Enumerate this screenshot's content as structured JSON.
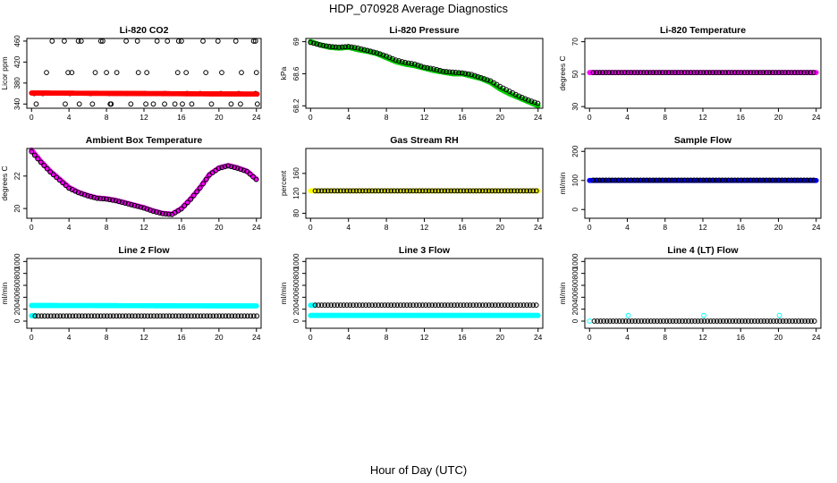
{
  "figure": {
    "title": "HDP_070928  Average Diagnostics",
    "xlabel": "Hour of Day (UTC)"
  },
  "chart_data": [
    {
      "type": "scatter",
      "title": "Li-820 CO2",
      "ylabel": "Licor ppm",
      "xlim": [
        -0.5,
        24.5
      ],
      "ylim": [
        332,
        465
      ],
      "xticks": [
        0,
        4,
        8,
        12,
        16,
        20,
        24
      ],
      "yticks": [
        340,
        380,
        420,
        460
      ],
      "series": [
        {
          "style": "open",
          "color": "#000000",
          "points": [
            [
              0.5,
              340
            ],
            [
              1.6,
              400
            ],
            [
              2.2,
              460
            ],
            [
              3.5,
              460
            ],
            [
              3.6,
              340
            ],
            [
              3.9,
              400
            ],
            [
              4.3,
              400
            ],
            [
              5.0,
              460
            ],
            [
              5.1,
              340
            ],
            [
              5.3,
              460
            ],
            [
              6.5,
              340
            ],
            [
              6.8,
              400
            ],
            [
              7.4,
              460
            ],
            [
              7.6,
              460
            ],
            [
              8.0,
              400
            ],
            [
              8.4,
              340
            ],
            [
              8.5,
              340
            ],
            [
              9.1,
              400
            ],
            [
              10.1,
              460
            ],
            [
              10.6,
              340
            ],
            [
              11.3,
              460
            ],
            [
              11.4,
              400
            ],
            [
              12.2,
              340
            ],
            [
              12.3,
              400
            ],
            [
              13.0,
              340
            ],
            [
              13.4,
              460
            ],
            [
              14.2,
              340
            ],
            [
              14.5,
              460
            ],
            [
              15.3,
              340
            ],
            [
              15.6,
              400
            ],
            [
              15.7,
              460
            ],
            [
              16.0,
              460
            ],
            [
              16.1,
              340
            ],
            [
              16.5,
              400
            ],
            [
              17.1,
              340
            ],
            [
              18.3,
              460
            ],
            [
              18.6,
              400
            ],
            [
              19.2,
              340
            ],
            [
              19.9,
              460
            ],
            [
              20.3,
              400
            ],
            [
              21.3,
              340
            ],
            [
              21.8,
              460
            ],
            [
              22.3,
              340
            ],
            [
              22.4,
              400
            ],
            [
              23.7,
              460
            ],
            [
              23.9,
              460
            ],
            [
              24.0,
              400
            ],
            [
              24.1,
              340
            ],
            [
              0.3,
              360
            ],
            [
              1.2,
              360
            ],
            [
              4.1,
              360
            ],
            [
              6.3,
              360
            ],
            [
              8.3,
              360
            ],
            [
              10.2,
              360
            ],
            [
              12.1,
              360
            ],
            [
              14.2,
              360
            ],
            [
              16.6,
              360
            ],
            [
              18.0,
              360
            ],
            [
              20.2,
              360
            ],
            [
              22.1,
              360
            ],
            [
              23.9,
              360
            ]
          ]
        },
        {
          "style": "dense",
          "color": "#ff0000",
          "from": 0,
          "to": 24.1,
          "y_start": 361,
          "y_end": 359
        }
      ]
    },
    {
      "type": "scatter",
      "title": "Li-820 Pressure",
      "ylabel": "kPa",
      "xlim": [
        -0.5,
        24.5
      ],
      "ylim": [
        68.17,
        69.04
      ],
      "xticks": [
        0,
        4,
        8,
        12,
        16,
        20,
        24
      ],
      "yticks": [
        68.2,
        68.6,
        69.0
      ],
      "series": [
        {
          "style": "dense",
          "color": "#00cc00",
          "curve": [
            [
              0,
              69.0
            ],
            [
              1,
              68.96
            ],
            [
              2,
              68.93
            ],
            [
              3,
              68.92
            ],
            [
              4,
              68.93
            ],
            [
              5,
              68.9
            ],
            [
              6,
              68.88
            ],
            [
              7,
              68.85
            ],
            [
              8,
              68.8
            ],
            [
              9,
              68.75
            ],
            [
              10,
              68.72
            ],
            [
              11,
              68.7
            ],
            [
              12,
              68.67
            ],
            [
              13,
              68.64
            ],
            [
              14,
              68.62
            ],
            [
              15,
              68.6
            ],
            [
              16,
              68.6
            ],
            [
              17,
              68.57
            ],
            [
              18,
              68.54
            ],
            [
              19,
              68.49
            ],
            [
              20,
              68.41
            ],
            [
              21,
              68.35
            ],
            [
              22,
              68.3
            ],
            [
              23,
              68.25
            ],
            [
              24,
              68.2
            ]
          ]
        },
        {
          "style": "open",
          "color": "#000000",
          "curve": [
            [
              0,
              68.99
            ],
            [
              1,
              68.96
            ],
            [
              2,
              68.94
            ],
            [
              3,
              68.93
            ],
            [
              4,
              68.94
            ],
            [
              5,
              68.92
            ],
            [
              6,
              68.89
            ],
            [
              7,
              68.86
            ],
            [
              8,
              68.82
            ],
            [
              9,
              68.77
            ],
            [
              10,
              68.74
            ],
            [
              11,
              68.72
            ],
            [
              12,
              68.68
            ],
            [
              13,
              68.66
            ],
            [
              14,
              68.63
            ],
            [
              15,
              68.62
            ],
            [
              16,
              68.61
            ],
            [
              17,
              68.59
            ],
            [
              18,
              68.55
            ],
            [
              19,
              68.51
            ],
            [
              20,
              68.44
            ],
            [
              21,
              68.38
            ],
            [
              22,
              68.32
            ],
            [
              23,
              68.27
            ],
            [
              24,
              68.23
            ]
          ]
        }
      ]
    },
    {
      "type": "scatter",
      "title": "Li-820 Temperature",
      "ylabel": "degrees C",
      "xlim": [
        -0.5,
        24.5
      ],
      "ylim": [
        29,
        72
      ],
      "xticks": [
        0,
        4,
        8,
        12,
        16,
        20,
        24
      ],
      "yticks": [
        30,
        50,
        70
      ],
      "series": [
        {
          "style": "dense",
          "color": "#ff00ff",
          "from": 0,
          "to": 24,
          "y_start": 51,
          "y_end": 51
        },
        {
          "style": "open",
          "color": "#000000",
          "from": 0.4,
          "to": 24,
          "y_start": 51,
          "y_end": 51
        }
      ]
    },
    {
      "type": "scatter",
      "title": "Ambient Box Temperature",
      "ylabel": "degrees C",
      "xlim": [
        -0.5,
        24.5
      ],
      "ylim": [
        19.4,
        23.7
      ],
      "xticks": [
        0,
        4,
        8,
        12,
        16,
        20,
        24
      ],
      "yticks": [
        20,
        22
      ],
      "series": [
        {
          "style": "dense",
          "color": "#ff00ff",
          "curve": [
            [
              0,
              23.6
            ],
            [
              1,
              22.9
            ],
            [
              2,
              22.3
            ],
            [
              3,
              21.8
            ],
            [
              4,
              21.3
            ],
            [
              5,
              21.0
            ],
            [
              6,
              20.8
            ],
            [
              7,
              20.65
            ],
            [
              8,
              20.6
            ],
            [
              9,
              20.5
            ],
            [
              10,
              20.35
            ],
            [
              11,
              20.2
            ],
            [
              12,
              20.05
            ],
            [
              13,
              19.85
            ],
            [
              14,
              19.7
            ],
            [
              15,
              19.65
            ],
            [
              16,
              20.0
            ],
            [
              17,
              20.6
            ],
            [
              18,
              21.3
            ],
            [
              19,
              22.1
            ],
            [
              20,
              22.5
            ],
            [
              21,
              22.65
            ],
            [
              22,
              22.5
            ],
            [
              23,
              22.3
            ],
            [
              24,
              21.8
            ]
          ]
        },
        {
          "style": "open",
          "color": "#000000",
          "curve": [
            [
              0,
              23.5
            ],
            [
              1,
              22.85
            ],
            [
              2,
              22.25
            ],
            [
              3,
              21.75
            ],
            [
              4,
              21.25
            ],
            [
              5,
              20.98
            ],
            [
              6,
              20.78
            ],
            [
              7,
              20.63
            ],
            [
              8,
              20.58
            ],
            [
              9,
              20.48
            ],
            [
              10,
              20.33
            ],
            [
              11,
              20.18
            ],
            [
              12,
              20.03
            ],
            [
              13,
              19.83
            ],
            [
              14,
              19.68
            ],
            [
              15,
              19.63
            ],
            [
              16,
              19.98
            ],
            [
              17,
              20.58
            ],
            [
              18,
              21.28
            ],
            [
              19,
              22.08
            ],
            [
              20,
              22.48
            ],
            [
              21,
              22.63
            ],
            [
              22,
              22.48
            ],
            [
              23,
              22.28
            ],
            [
              24,
              21.78
            ]
          ]
        }
      ]
    },
    {
      "type": "scatter",
      "title": "Gas Stream RH",
      "ylabel": "percent",
      "xlim": [
        -0.5,
        24.5
      ],
      "ylim": [
        70,
        210
      ],
      "xticks": [
        0,
        4,
        8,
        12,
        16,
        20,
        24
      ],
      "yticks": [
        80,
        120,
        160
      ],
      "series": [
        {
          "style": "dense",
          "color": "#ffff00",
          "from": 0,
          "to": 24,
          "y_start": 125,
          "y_end": 125
        },
        {
          "style": "open",
          "color": "#000000",
          "from": 0.5,
          "to": 24,
          "y_start": 125,
          "y_end": 125
        }
      ]
    },
    {
      "type": "scatter",
      "title": "Sample Flow",
      "ylabel": "ml/min",
      "xlim": [
        -0.5,
        24.5
      ],
      "ylim": [
        -30,
        210
      ],
      "xticks": [
        0,
        4,
        8,
        12,
        16,
        20,
        24
      ],
      "yticks": [
        0,
        100,
        200
      ],
      "series": [
        {
          "style": "dense",
          "color": "#0000ff",
          "from": 0,
          "to": 24,
          "y_start": 100,
          "y_end": 100
        },
        {
          "style": "open",
          "color": "#000000",
          "from": 0.4,
          "to": 24,
          "y_start": 101,
          "y_end": 101
        }
      ]
    },
    {
      "type": "scatter",
      "title": "Line 2 Flow",
      "ylabel": "ml/min",
      "xlim": [
        -0.5,
        24.5
      ],
      "ylim": [
        -120,
        1050
      ],
      "xticks": [
        0,
        4,
        8,
        12,
        16,
        20,
        24
      ],
      "yticks": [
        0,
        200,
        400,
        600,
        800,
        1000
      ],
      "series": [
        {
          "style": "dense",
          "color": "#00ffff",
          "from": 0,
          "to": 24,
          "y_start": 262,
          "y_end": 255
        },
        {
          "style": "dense",
          "color": "#00ffff",
          "from": 0,
          "to": 0.4,
          "y_start": 90,
          "y_end": 90
        },
        {
          "style": "open",
          "color": "#000000",
          "from": 0.4,
          "to": 24.1,
          "y_start": 85,
          "y_end": 85
        }
      ]
    },
    {
      "type": "scatter",
      "title": "Line 3 Flow",
      "ylabel": "ml/min",
      "xlim": [
        -0.5,
        24.5
      ],
      "ylim": [
        -120,
        1050
      ],
      "xticks": [
        0,
        4,
        8,
        12,
        16,
        20,
        24
      ],
      "yticks": [
        0,
        200,
        400,
        600,
        800,
        1000
      ],
      "series": [
        {
          "style": "dense",
          "color": "#00ffff",
          "from": 0,
          "to": 24,
          "y_start": 95,
          "y_end": 95
        },
        {
          "style": "dense",
          "color": "#00ffff",
          "from": 0,
          "to": 0.4,
          "y_start": 265,
          "y_end": 265
        },
        {
          "style": "open",
          "color": "#000000",
          "from": 0.5,
          "to": 24.1,
          "y_start": 268,
          "y_end": 268
        }
      ]
    },
    {
      "type": "scatter",
      "title": "Line 4 (LT) Flow",
      "ylabel": "ml/min",
      "xlim": [
        -0.5,
        24.5
      ],
      "ylim": [
        -120,
        1050
      ],
      "xticks": [
        0,
        4,
        8,
        12,
        16,
        20,
        24
      ],
      "yticks": [
        0,
        200,
        400,
        600,
        800,
        1000
      ],
      "series": [
        {
          "style": "open",
          "color": "#000000",
          "from": 0.5,
          "to": 24.1,
          "y_start": 0,
          "y_end": 0
        },
        {
          "style": "open",
          "color": "#00ffff",
          "points": [
            [
              0,
              0
            ],
            [
              4.1,
              95
            ],
            [
              12.1,
              95
            ],
            [
              20.1,
              95
            ]
          ]
        }
      ]
    }
  ]
}
